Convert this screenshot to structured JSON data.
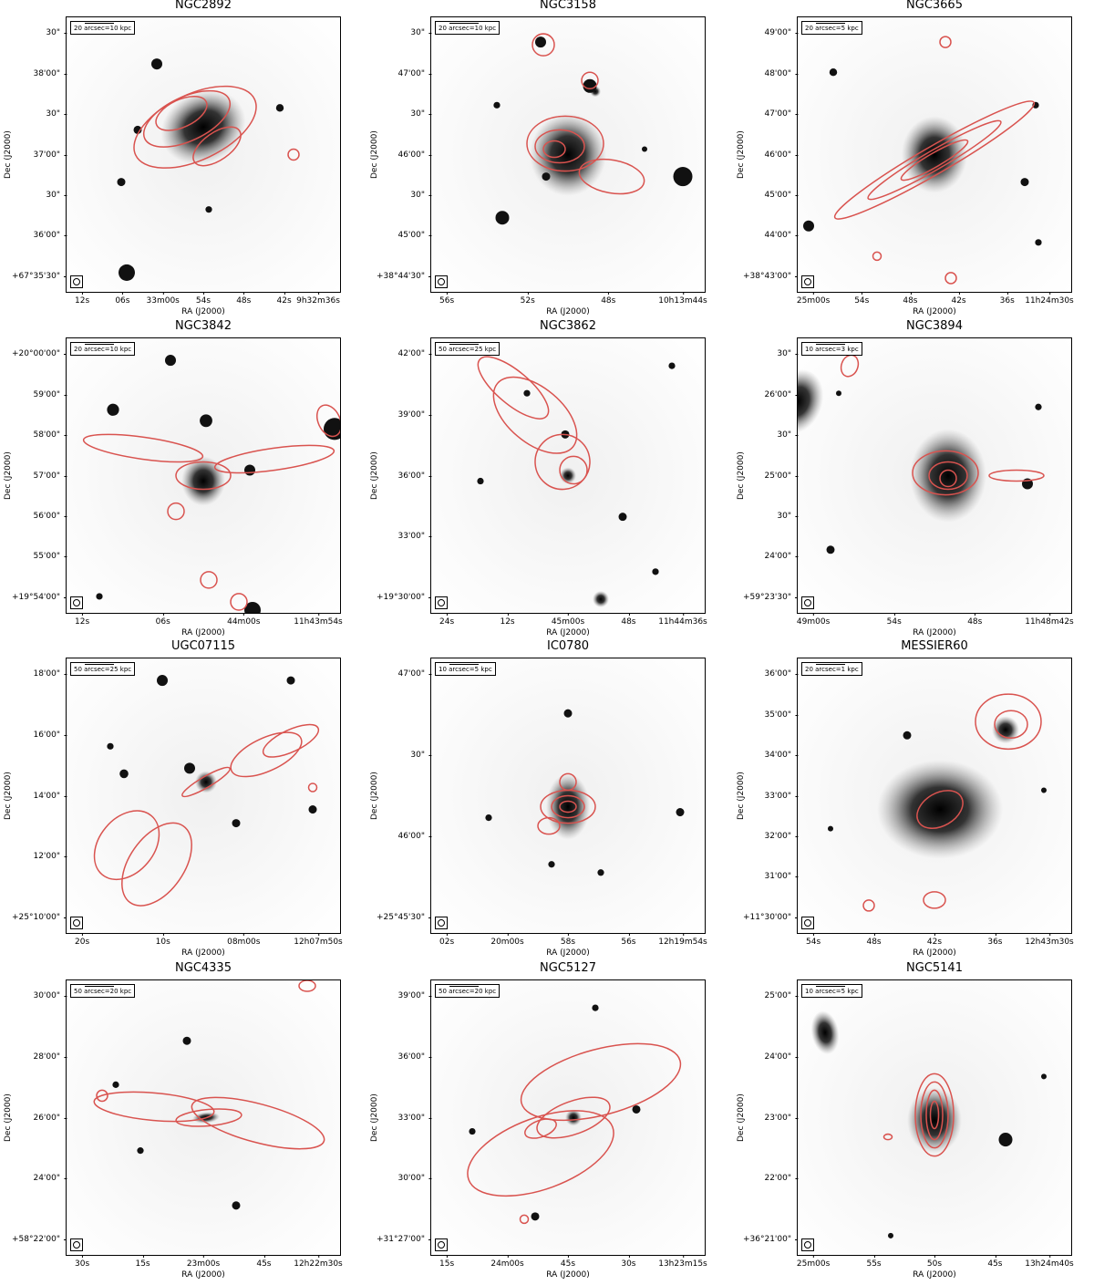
{
  "axis_labels": {
    "x": "RA (J2000)",
    "y": "Dec (J2000)"
  },
  "contour_color": "#d9534f",
  "panels": [
    {
      "name": "NGC2892",
      "scale": "20 arcsec=10 kpc",
      "yticks": [
        "30\"",
        "38'00\"",
        "30\"",
        "37'00\"",
        "30\"",
        "36'00\"",
        "+67°35'30\""
      ],
      "xticks": [
        "12s",
        "06s",
        "33m00s",
        "54s",
        "48s",
        "42s",
        "9h32m36s"
      ]
    },
    {
      "name": "NGC3158",
      "scale": "20 arcsec=10 kpc",
      "yticks": [
        "30\"",
        "47'00\"",
        "30\"",
        "46'00\"",
        "30\"",
        "45'00\"",
        "+38°44'30\""
      ],
      "xticks": [
        "56s",
        "52s",
        "48s",
        "10h13m44s"
      ]
    },
    {
      "name": "NGC3665",
      "scale": "20 arcsec=5 kpc",
      "yticks": [
        "49'00\"",
        "48'00\"",
        "47'00\"",
        "46'00\"",
        "45'00\"",
        "44'00\"",
        "+38°43'00\""
      ],
      "xticks": [
        "25m00s",
        "54s",
        "48s",
        "42s",
        "36s",
        "11h24m30s"
      ]
    },
    {
      "name": "NGC3842",
      "scale": "20 arcsec=10 kpc",
      "yticks": [
        "+20°00'00\"",
        "59'00\"",
        "58'00\"",
        "57'00\"",
        "56'00\"",
        "55'00\"",
        "+19°54'00\""
      ],
      "xticks": [
        "12s",
        "06s",
        "44m00s",
        "11h43m54s"
      ]
    },
    {
      "name": "NGC3862",
      "scale": "50 arcsec=25 kpc",
      "yticks": [
        "42'00\"",
        "39'00\"",
        "36'00\"",
        "33'00\"",
        "+19°30'00\""
      ],
      "xticks": [
        "24s",
        "12s",
        "45m00s",
        "48s",
        "11h44m36s"
      ]
    },
    {
      "name": "NGC3894",
      "scale": "10 arcsec=3 kpc",
      "yticks": [
        "30\"",
        "26'00\"",
        "30\"",
        "25'00\"",
        "30\"",
        "24'00\"",
        "+59°23'30\""
      ],
      "xticks": [
        "49m00s",
        "54s",
        "48s",
        "11h48m42s"
      ]
    },
    {
      "name": "UGC07115",
      "scale": "50 arcsec=25 kpc",
      "yticks": [
        "18'00\"",
        "16'00\"",
        "14'00\"",
        "12'00\"",
        "+25°10'00\""
      ],
      "xticks": [
        "20s",
        "10s",
        "08m00s",
        "12h07m50s"
      ]
    },
    {
      "name": "IC0780",
      "scale": "10 arcsec=5 kpc",
      "yticks": [
        "47'00\"",
        "30\"",
        "46'00\"",
        "+25°45'30\""
      ],
      "xticks": [
        "02s",
        "20m00s",
        "58s",
        "56s",
        "12h19m54s"
      ]
    },
    {
      "name": "MESSIER60",
      "scale": "20 arcsec=1 kpc",
      "yticks": [
        "36'00\"",
        "35'00\"",
        "34'00\"",
        "33'00\"",
        "32'00\"",
        "31'00\"",
        "+11°30'00\""
      ],
      "xticks": [
        "54s",
        "48s",
        "42s",
        "36s",
        "12h43m30s"
      ]
    },
    {
      "name": "NGC4335",
      "scale": "50 arcsec=20 kpc",
      "yticks": [
        "30'00\"",
        "28'00\"",
        "26'00\"",
        "24'00\"",
        "+58°22'00\""
      ],
      "xticks": [
        "30s",
        "15s",
        "23m00s",
        "45s",
        "12h22m30s"
      ]
    },
    {
      "name": "NGC5127",
      "scale": "50 arcsec=20 kpc",
      "yticks": [
        "39'00\"",
        "36'00\"",
        "33'00\"",
        "30'00\"",
        "+31°27'00\""
      ],
      "xticks": [
        "15s",
        "24m00s",
        "45s",
        "30s",
        "13h23m15s"
      ]
    },
    {
      "name": "NGC5141",
      "scale": "10 arcsec=5 kpc",
      "yticks": [
        "25'00\"",
        "24'00\"",
        "23'00\"",
        "22'00\"",
        "+36°21'00\""
      ],
      "xticks": [
        "25m00s",
        "55s",
        "50s",
        "45s",
        "13h24m40s"
      ]
    }
  ]
}
